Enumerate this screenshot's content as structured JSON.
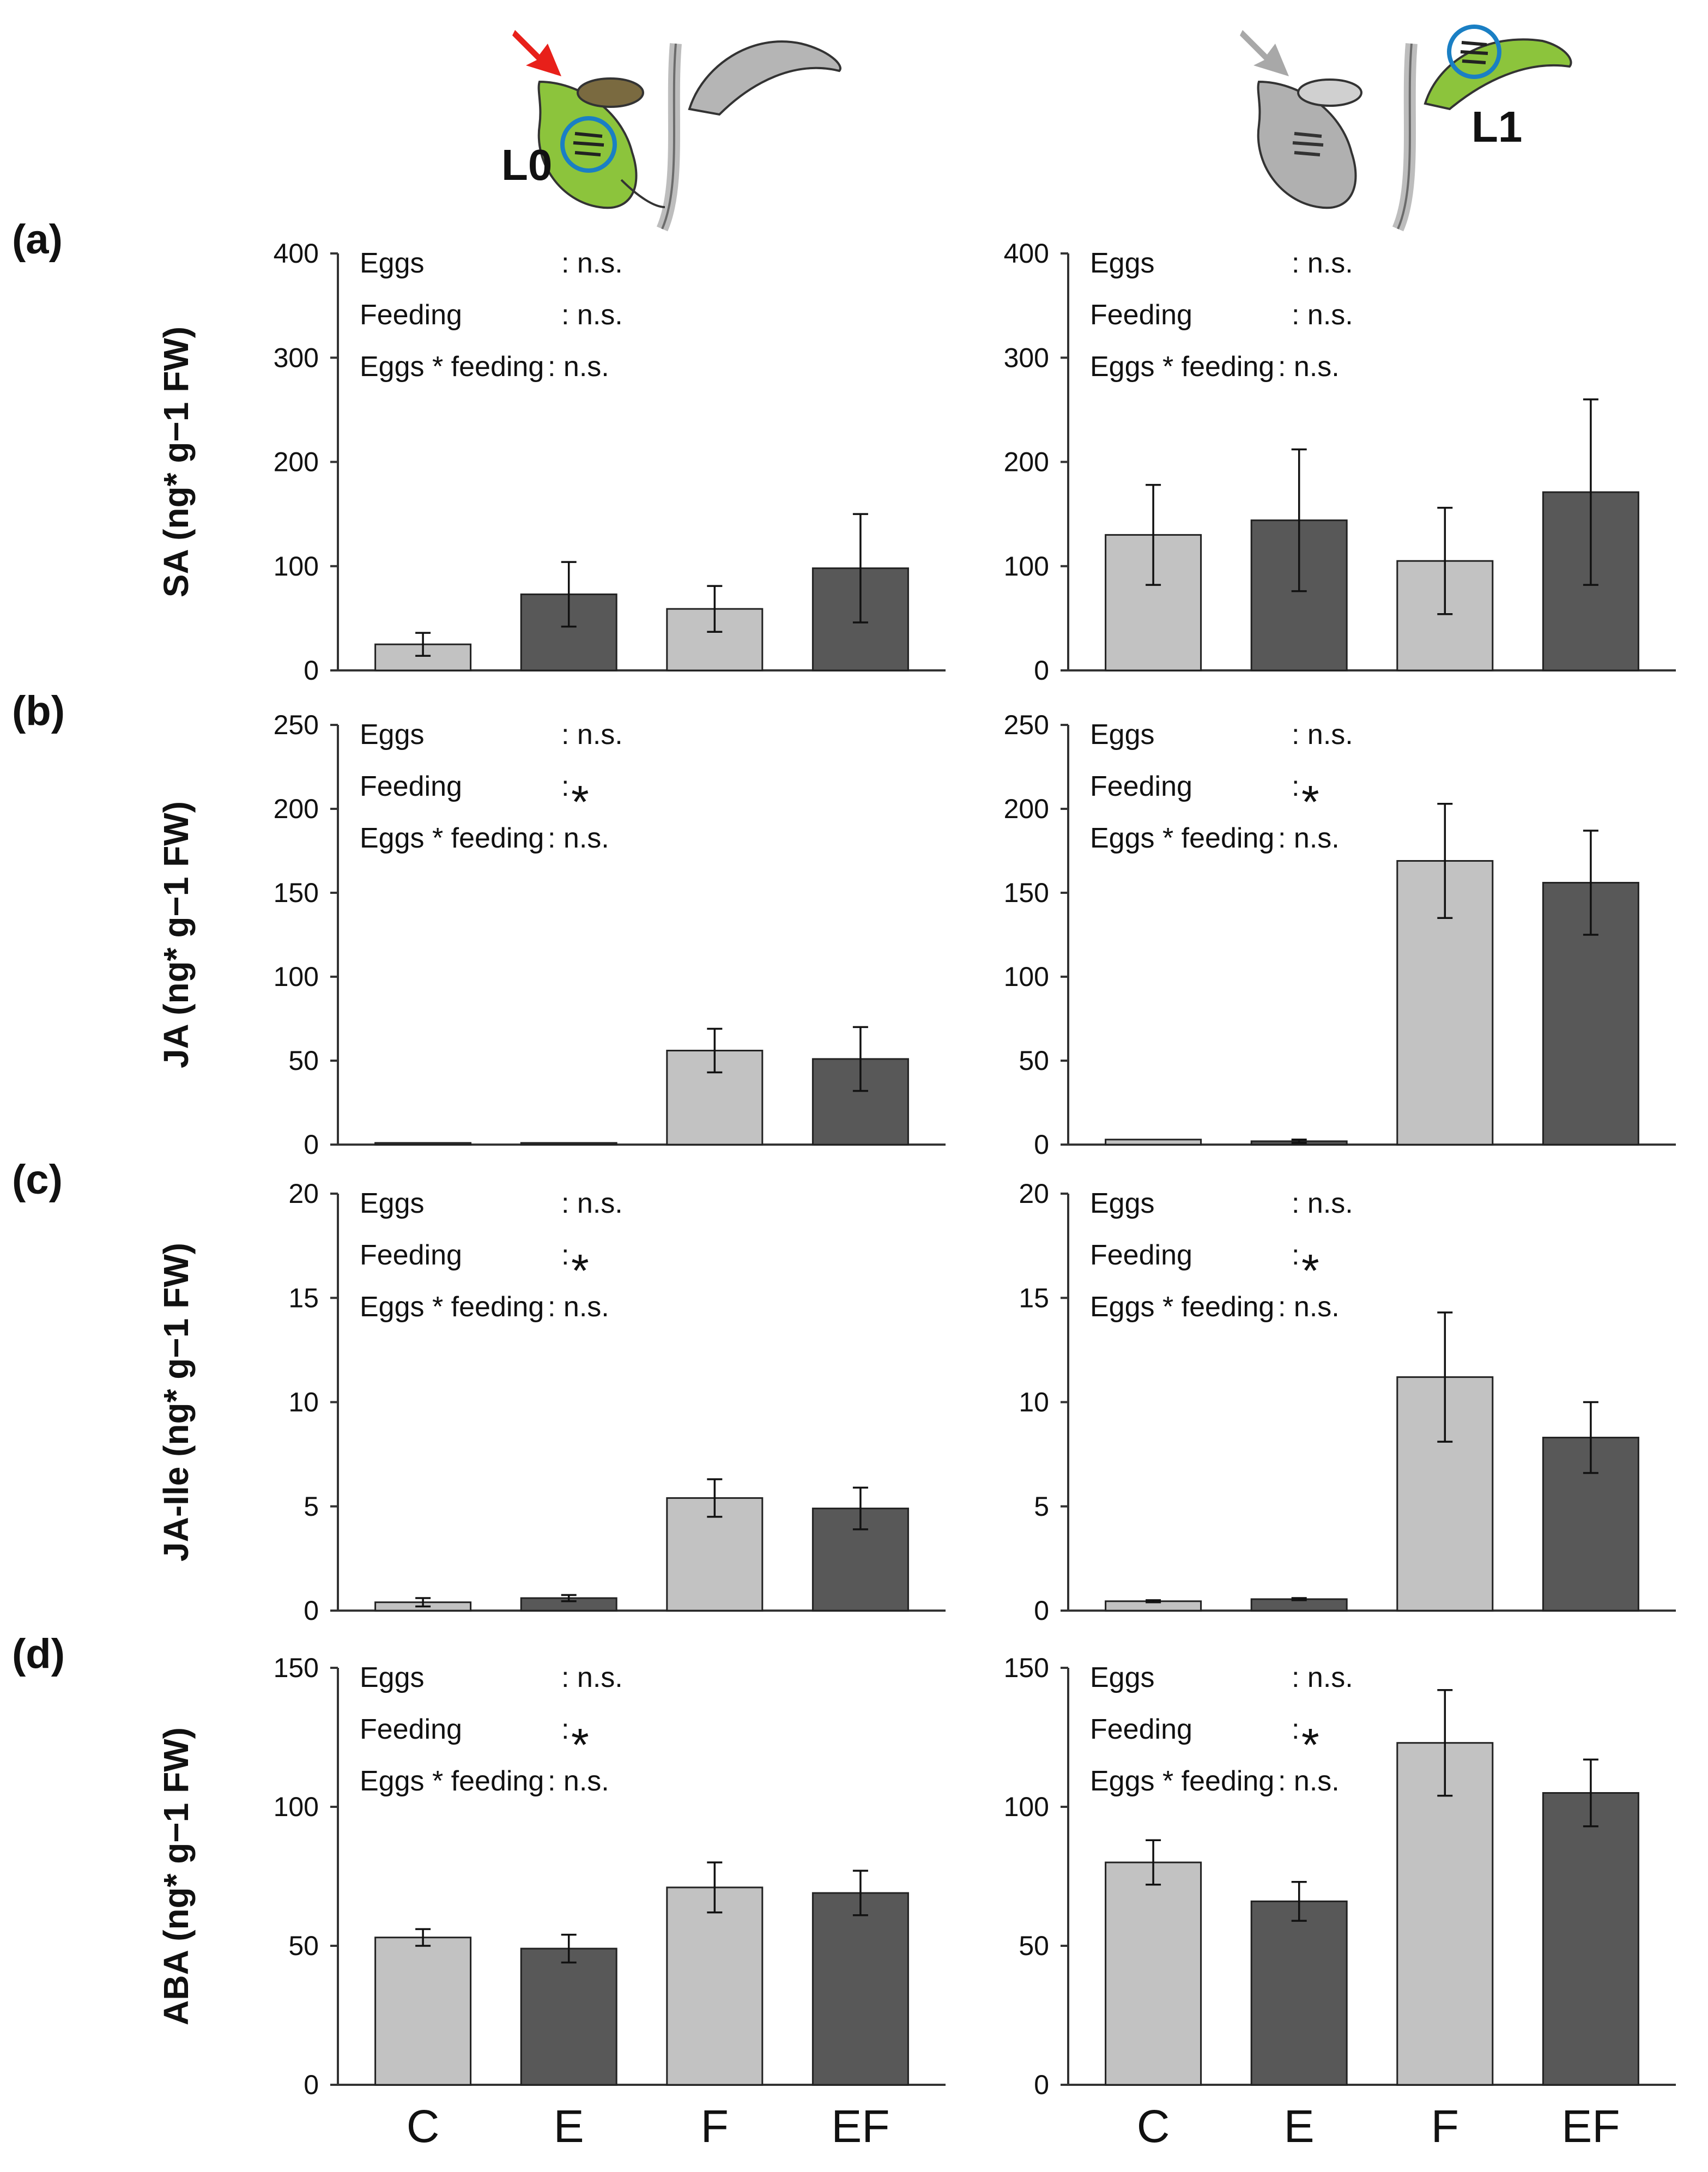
{
  "colors": {
    "light_bar": "#c2c2c2",
    "dark_bar": "#585858",
    "axis": "#333333",
    "arrow_local": "#e8201a",
    "arrow_systemic": "#a8a8a8",
    "leaf_green": "#8cc43c",
    "circle_blue": "#1a7fc4"
  },
  "header": {
    "local_leaf_label": "L0",
    "systemic_leaf_label": "L1",
    "icons": [
      "red-arrow-icon",
      "gray-arrow-icon",
      "leaf-with-beetle-icon",
      "egg-circle-icon"
    ]
  },
  "stats_labels": {
    "eggs": "Eggs",
    "feeding": "Feeding",
    "interaction": "Eggs * feeding"
  },
  "categories": [
    "C",
    "E",
    "F",
    "EF"
  ],
  "chart_data": [
    {
      "type": "bar",
      "panel": "(a)",
      "leaf": "L0",
      "ylabel": "SA (ng* g−1 FW)",
      "ylim": [
        0,
        400
      ],
      "yticks": [
        "0",
        "100",
        "200",
        "300",
        "400"
      ],
      "categories": [
        "C",
        "E",
        "F",
        "EF"
      ],
      "values": [
        25,
        73,
        59,
        98
      ],
      "errors": [
        11,
        31,
        22,
        52
      ],
      "stats": {
        "eggs": ": n.s.",
        "feeding": ": n.s.",
        "interaction": ": n.s."
      }
    },
    {
      "type": "bar",
      "panel": "(a)",
      "leaf": "L1",
      "ylabel": "SA (ng* g−1 FW)",
      "ylim": [
        0,
        400
      ],
      "yticks": [
        "0",
        "100",
        "200",
        "300",
        "400"
      ],
      "categories": [
        "C",
        "E",
        "F",
        "EF"
      ],
      "values": [
        130,
        144,
        105,
        171
      ],
      "errors": [
        48,
        68,
        51,
        89
      ],
      "stats": {
        "eggs": ": n.s.",
        "feeding": ": n.s.",
        "interaction": ": n.s."
      }
    },
    {
      "type": "bar",
      "panel": "(b)",
      "leaf": "L0",
      "ylabel": "JA (ng* g−1 FW)",
      "ylim": [
        0,
        250
      ],
      "yticks": [
        "0",
        "50",
        "100",
        "150",
        "200",
        "250"
      ],
      "categories": [
        "C",
        "E",
        "F",
        "EF"
      ],
      "values": [
        1,
        1,
        56,
        51
      ],
      "errors": [
        0,
        0,
        13,
        19
      ],
      "stats": {
        "eggs": ": n.s.",
        "feeding": ":",
        "feeding_star": "*",
        "interaction": ": n.s."
      }
    },
    {
      "type": "bar",
      "panel": "(b)",
      "leaf": "L1",
      "ylabel": "JA (ng* g−1 FW)",
      "ylim": [
        0,
        250
      ],
      "yticks": [
        "0",
        "50",
        "100",
        "150",
        "200",
        "250"
      ],
      "categories": [
        "C",
        "E",
        "F",
        "EF"
      ],
      "values": [
        3,
        2,
        169,
        156
      ],
      "errors": [
        0,
        1,
        34,
        31
      ],
      "stats": {
        "eggs": ": n.s.",
        "feeding": ":",
        "feeding_star": "*",
        "interaction": ": n.s."
      }
    },
    {
      "type": "bar",
      "panel": "(c)",
      "leaf": "L0",
      "ylabel": "JA-Ile (ng* g−1 FW)",
      "ylim": [
        0,
        20
      ],
      "yticks": [
        "0",
        "5",
        "10",
        "15",
        "20"
      ],
      "categories": [
        "C",
        "E",
        "F",
        "EF"
      ],
      "values": [
        0.4,
        0.6,
        5.4,
        4.9
      ],
      "errors": [
        0.2,
        0.15,
        0.9,
        1.0
      ],
      "stats": {
        "eggs": ": n.s.",
        "feeding": ":",
        "feeding_star": "*",
        "interaction": ": n.s."
      }
    },
    {
      "type": "bar",
      "panel": "(c)",
      "leaf": "L1",
      "ylabel": "JA-Ile (ng* g−1 FW)",
      "ylim": [
        0,
        20
      ],
      "yticks": [
        "0",
        "5",
        "10",
        "15",
        "20"
      ],
      "categories": [
        "C",
        "E",
        "F",
        "EF"
      ],
      "values": [
        0.45,
        0.55,
        11.2,
        8.3
      ],
      "errors": [
        0.05,
        0.05,
        3.1,
        1.7
      ],
      "stats": {
        "eggs": ": n.s.",
        "feeding": ":",
        "feeding_star": "*",
        "interaction": ": n.s."
      }
    },
    {
      "type": "bar",
      "panel": "(d)",
      "leaf": "L0",
      "ylabel": "ABA (ng* g−1 FW)",
      "ylim": [
        0,
        150
      ],
      "yticks": [
        "0",
        "50",
        "100",
        "150"
      ],
      "categories": [
        "C",
        "E",
        "F",
        "EF"
      ],
      "values": [
        53,
        49,
        71,
        69
      ],
      "errors": [
        3,
        5,
        9,
        8
      ],
      "stats": {
        "eggs": ": n.s.",
        "feeding": ":",
        "feeding_star": "*",
        "interaction": ": n.s."
      }
    },
    {
      "type": "bar",
      "panel": "(d)",
      "leaf": "L1",
      "ylabel": "ABA (ng* g−1 FW)",
      "ylim": [
        0,
        150
      ],
      "yticks": [
        "0",
        "50",
        "100",
        "150"
      ],
      "categories": [
        "C",
        "E",
        "F",
        "EF"
      ],
      "values": [
        80,
        66,
        123,
        105
      ],
      "errors": [
        8,
        7,
        19,
        12
      ],
      "stats": {
        "eggs": ": n.s.",
        "feeding": ":",
        "feeding_star": "*",
        "interaction": ": n.s."
      }
    }
  ]
}
